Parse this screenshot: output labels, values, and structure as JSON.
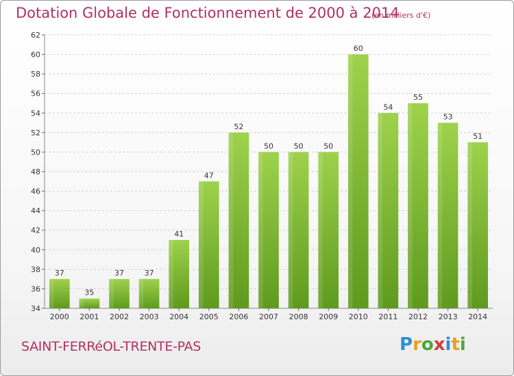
{
  "header": {
    "title": "Dotation Globale de Fonctionnement de 2000 à 2014",
    "subtitle": "(en milliers d'€)"
  },
  "footer": {
    "commune": "SAINT-FERRéOL-TRENTE-PAS",
    "logo_letters": [
      {
        "ch": "P",
        "color": "#2a8fd6"
      },
      {
        "ch": "r",
        "color": "#e8a020"
      },
      {
        "ch": "o",
        "color": "#4aa83a"
      },
      {
        "ch": "x",
        "color": "#d63a3a"
      },
      {
        "ch": "i",
        "color": "#2a8fd6"
      },
      {
        "ch": "t",
        "color": "#e8a020"
      },
      {
        "ch": "i",
        "color": "#4aa83a"
      }
    ]
  },
  "colors": {
    "bar_top": "#9ed24c",
    "bar_bottom": "#5e9a1e",
    "text_accent": "#b03060",
    "grid": "#d0d0d0",
    "axis_text": "#333333"
  },
  "chart_data": {
    "type": "bar",
    "categories": [
      "2000",
      "2001",
      "2002",
      "2003",
      "2004",
      "2005",
      "2006",
      "2007",
      "2008",
      "2009",
      "2010",
      "2011",
      "2012",
      "2013",
      "2014"
    ],
    "values": [
      37,
      35,
      37,
      37,
      41,
      47,
      52,
      50,
      50,
      50,
      60,
      54,
      55,
      53,
      51
    ],
    "ylim": [
      34,
      62
    ],
    "yticks": [
      34,
      36,
      38,
      40,
      42,
      44,
      46,
      48,
      50,
      52,
      54,
      56,
      58,
      60,
      62
    ],
    "grid": true,
    "data_labels": true
  }
}
